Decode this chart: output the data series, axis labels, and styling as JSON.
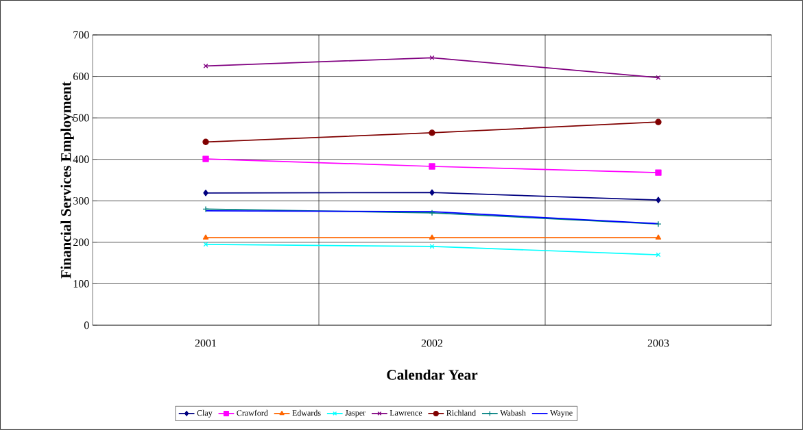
{
  "chart_data": {
    "type": "line",
    "xlabel": "Calendar Year",
    "ylabel": "Financial Services Employment",
    "categories": [
      "2001",
      "2002",
      "2003"
    ],
    "series": [
      {
        "name": "Clay",
        "color": "#000080",
        "marker": "diamond",
        "values": [
          319,
          320,
          302
        ]
      },
      {
        "name": "Crawford",
        "color": "#ff00ff",
        "marker": "square",
        "values": [
          401,
          383,
          368
        ]
      },
      {
        "name": "Edwards",
        "color": "#ff6600",
        "marker": "triangle",
        "values": [
          211,
          211,
          211
        ]
      },
      {
        "name": "Jasper",
        "color": "#00ffff",
        "marker": "cross",
        "values": [
          195,
          190,
          170
        ]
      },
      {
        "name": "Lawrence",
        "color": "#800080",
        "marker": "cross",
        "values": [
          625,
          645,
          597
        ]
      },
      {
        "name": "Richland",
        "color": "#800000",
        "marker": "circle",
        "values": [
          442,
          464,
          490
        ]
      },
      {
        "name": "Wabash",
        "color": "#008080",
        "marker": "plus",
        "values": [
          280,
          271,
          244
        ]
      },
      {
        "name": "Wayne",
        "color": "#0000ff",
        "marker": "none",
        "values": [
          276,
          274,
          245
        ]
      }
    ],
    "ylim": [
      0,
      700
    ],
    "yticks": [
      0,
      100,
      200,
      300,
      400,
      500,
      600,
      700
    ],
    "grid": true,
    "legend": "bottom"
  }
}
